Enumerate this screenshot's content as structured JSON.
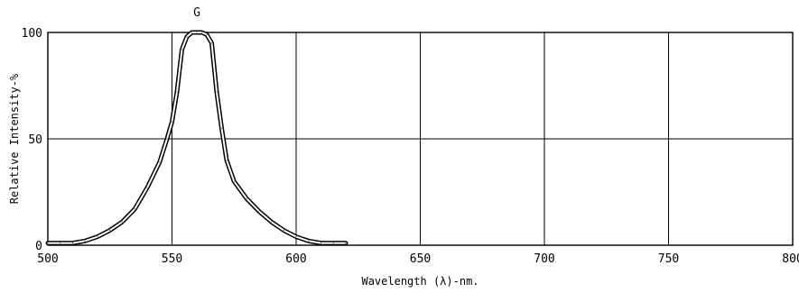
{
  "chart_data": {
    "type": "line",
    "series_label": "G",
    "xlabel": "Wavelength (λ)-nm.",
    "ylabel": "Relative Intensity-%",
    "xlim": [
      500,
      800
    ],
    "ylim": [
      0,
      100
    ],
    "xticks": [
      "500",
      "550",
      "600",
      "650",
      "700",
      "750",
      "800"
    ],
    "yticks": [
      "0",
      "50",
      "100"
    ],
    "grid": true,
    "series": [
      {
        "x": [
          500,
          505,
          510,
          515,
          520,
          525,
          530,
          535,
          540,
          545,
          548,
          550,
          552,
          554,
          556,
          558,
          560,
          562,
          564,
          566,
          568,
          570,
          572,
          575,
          580,
          585,
          590,
          595,
          600,
          605,
          610,
          615,
          620
        ],
        "y": [
          1,
          1,
          1,
          2,
          4,
          7,
          11,
          17,
          27,
          39,
          50,
          58,
          72,
          92,
          98,
          100,
          100,
          100,
          99,
          95,
          72,
          55,
          40,
          30,
          22,
          16,
          11,
          7,
          4,
          2,
          1,
          1,
          1
        ]
      }
    ]
  }
}
